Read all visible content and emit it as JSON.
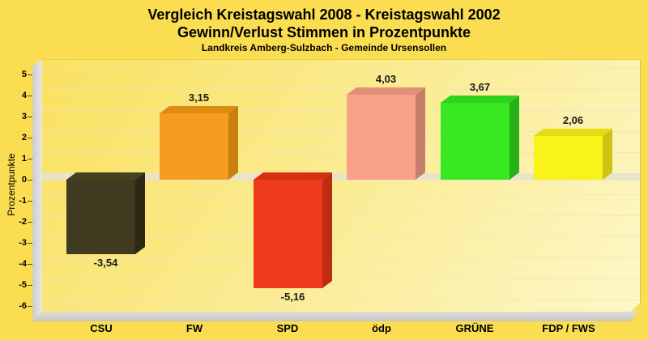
{
  "header": {
    "title_line1": "Vergleich Kreistagswahl 2008 - Kreistagswahl 2002",
    "title_line2": "Gewinn/Verlust Stimmen in Prozentpunkte",
    "subtitle": "Landkreis Amberg-Sulzbach - Gemeinde Ursensollen"
  },
  "chart_data": {
    "type": "bar",
    "style": "3d-column",
    "title": "Vergleich Kreistagswahl 2008 - Kreistagswahl 2002 — Gewinn/Verlust Stimmen in Prozentpunkte",
    "subtitle": "Landkreis Amberg-Sulzbach - Gemeinde Ursensollen",
    "categories": [
      "CSU",
      "FW",
      "SPD",
      "ödp",
      "GRÜNE",
      "FDP / FWS"
    ],
    "values": [
      -3.54,
      3.15,
      -5.16,
      4.03,
      3.67,
      2.06
    ],
    "value_labels": [
      "-3,54",
      "3,15",
      "-5,16",
      "4,03",
      "3,67",
      "2,06"
    ],
    "xlabel": "",
    "ylabel": "Prozentpunkte",
    "ylim": [
      -6.5,
      5.5
    ],
    "yticks": [
      5,
      4,
      3,
      2,
      1,
      0,
      -1,
      -2,
      -3,
      -4,
      -5,
      -6
    ],
    "grid": true,
    "legend": false,
    "bar_colors": [
      {
        "party": "CSU",
        "front": "#403B20",
        "top": "#46411D",
        "side": "#2C2812"
      },
      {
        "party": "FW",
        "front": "#F79C1E",
        "top": "#E08C12",
        "side": "#C97E10"
      },
      {
        "party": "SPD",
        "front": "#F03A1E",
        "top": "#D63115",
        "side": "#BE2B11"
      },
      {
        "party": "ödp",
        "front": "#F9A089",
        "top": "#E28F79",
        "side": "#C47E69"
      },
      {
        "party": "GRÜNE",
        "front": "#38E822",
        "top": "#2FD21D",
        "side": "#28B018"
      },
      {
        "party": "FDP / FWS",
        "front": "#F8F41A",
        "top": "#E5DC12",
        "side": "#CDC310"
      }
    ]
  },
  "colors": {
    "page_background": "#FADD51",
    "plot_background_top": "#F9E160",
    "plot_background_bottom": "#FDF7C6",
    "wall_gray": "#D9D7D4",
    "floor_gray": "#CFCCC8",
    "zero_band": "#E9E4C9",
    "gridline": "#E6E2CD",
    "text": "#000000"
  }
}
